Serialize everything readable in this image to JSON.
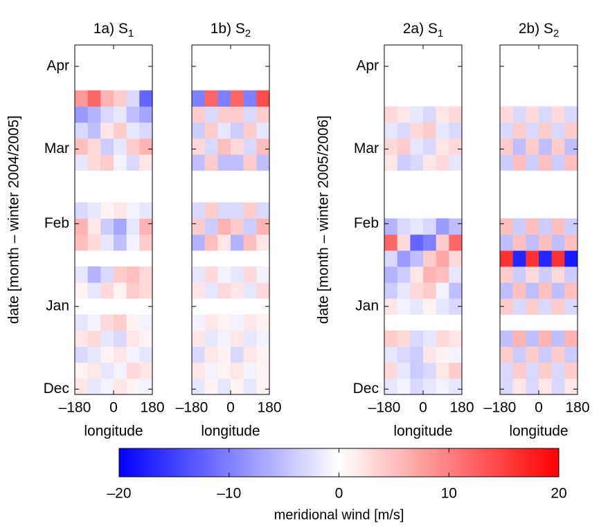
{
  "chart_data": [
    {
      "type": "heatmap",
      "title": "1a) S",
      "title_sub": "1",
      "xlabel": "longitude",
      "ylabel": "date [month – winter 2004/2005]",
      "x": [
        -150,
        -90,
        -30,
        30,
        90,
        150
      ],
      "xlim": [
        -180,
        180
      ],
      "xticks": [
        {
          "value": -180,
          "label": "–180"
        },
        0,
        180
      ],
      "y": [
        1,
        7,
        13,
        19,
        25,
        31,
        37,
        43,
        49,
        55,
        61,
        67,
        73,
        79,
        85,
        91,
        97,
        103,
        109,
        115,
        121,
        127
      ],
      "ylim": [
        -2,
        129
      ],
      "yticks": [
        {
          "value": 0,
          "label": "Dec"
        },
        {
          "value": 31,
          "label": "Jan"
        },
        {
          "value": 62,
          "label": "Feb"
        },
        {
          "value": 90,
          "label": "Mar"
        },
        {
          "value": 121,
          "label": "Apr"
        }
      ],
      "values": [
        [
          2,
          -2,
          -1,
          2,
          1,
          -1
        ],
        [
          1,
          2,
          -2,
          -1,
          3,
          2
        ],
        [
          -3,
          -2,
          1,
          2,
          -1,
          -2
        ],
        [
          2,
          3,
          -2,
          -3,
          2,
          1
        ],
        [
          -2,
          -1,
          3,
          4,
          1,
          -1
        ],
        null,
        [
          1,
          -2,
          3,
          1,
          4,
          3
        ],
        [
          -2,
          -6,
          -3,
          4,
          5,
          3
        ],
        null,
        [
          5,
          3,
          -2,
          -5,
          -1,
          4
        ],
        [
          6,
          2,
          -4,
          -7,
          -2,
          6
        ],
        [
          -3,
          -2,
          1,
          2,
          -1,
          -2
        ],
        null,
        null,
        [
          -2,
          3,
          4,
          -1,
          -3,
          2
        ],
        [
          5,
          3,
          -4,
          -2,
          4,
          6
        ],
        [
          -3,
          -5,
          2,
          4,
          -2,
          -3
        ],
        [
          -8,
          -6,
          -3,
          -2,
          -5,
          -7
        ],
        [
          8,
          12,
          6,
          4,
          -3,
          -12
        ],
        null,
        null,
        null
      ]
    },
    {
      "type": "heatmap",
      "title": "1b) S",
      "title_sub": "2",
      "xlabel": "longitude",
      "x": [
        -150,
        -90,
        -30,
        30,
        90,
        150
      ],
      "xlim": [
        -180,
        180
      ],
      "xticks": [
        {
          "value": -180,
          "label": "–180"
        },
        0,
        180
      ],
      "y": [
        1,
        7,
        13,
        19,
        25,
        31,
        37,
        43,
        49,
        55,
        61,
        67,
        73,
        79,
        85,
        91,
        97,
        103,
        109,
        115,
        121,
        127
      ],
      "ylim": [
        -2,
        129
      ],
      "yticks": [
        0,
        31,
        62,
        90,
        121
      ],
      "values": [
        [
          -2,
          1,
          -2,
          1,
          -2,
          1
        ],
        [
          2,
          -1,
          1,
          2,
          -1,
          1
        ],
        [
          -3,
          2,
          1,
          -3,
          2,
          1
        ],
        [
          2,
          -2,
          -1,
          2,
          -2,
          -1
        ],
        [
          -1,
          2,
          1,
          -1,
          2,
          1
        ],
        null,
        [
          2,
          -2,
          3,
          2,
          -2,
          3
        ],
        [
          -2,
          3,
          -1,
          -2,
          3,
          -1
        ],
        null,
        [
          -6,
          5,
          2,
          -6,
          5,
          2
        ],
        [
          4,
          -4,
          6,
          4,
          -4,
          6
        ],
        [
          -3,
          4,
          -3,
          -3,
          4,
          -3
        ],
        null,
        null,
        [
          -5,
          4,
          -5,
          -5,
          4,
          -5
        ],
        [
          3,
          -3,
          5,
          3,
          -3,
          5
        ],
        [
          -4,
          4,
          -2,
          -4,
          4,
          -2
        ],
        [
          4,
          -3,
          4,
          4,
          -3,
          4
        ],
        [
          -10,
          12,
          -10,
          12,
          -10,
          14
        ],
        null,
        null,
        null
      ]
    },
    {
      "type": "heatmap",
      "title": "2a) S",
      "title_sub": "1",
      "xlabel": "longitude",
      "ylabel": "date [month – winter 2005/2006]",
      "x": [
        -150,
        -90,
        -30,
        30,
        90,
        150
      ],
      "xlim": [
        -180,
        180
      ],
      "xticks": [
        {
          "value": -180,
          "label": "–180"
        },
        0,
        180
      ],
      "y": [
        1,
        7,
        13,
        19,
        25,
        31,
        37,
        43,
        49,
        55,
        61,
        67,
        73,
        79,
        85,
        91,
        97,
        103,
        109,
        115,
        121,
        127
      ],
      "ylim": [
        -2,
        129
      ],
      "yticks": [
        {
          "value": 0,
          "label": "Dec"
        },
        {
          "value": 31,
          "label": "Jan"
        },
        {
          "value": 62,
          "label": "Feb"
        },
        {
          "value": 90,
          "label": "Mar"
        },
        {
          "value": 121,
          "label": "Apr"
        }
      ],
      "values": [
        [
          -2,
          -1,
          -3,
          -2,
          -1,
          -2
        ],
        [
          3,
          -2,
          -4,
          -3,
          2,
          4
        ],
        [
          -2,
          -3,
          -4,
          2,
          1,
          -1
        ],
        [
          4,
          3,
          -3,
          -2,
          3,
          2
        ],
        null,
        [
          2,
          -1,
          -2,
          1,
          -2,
          -3
        ],
        [
          -4,
          -2,
          3,
          4,
          -1,
          -5
        ],
        [
          -6,
          -4,
          2,
          6,
          5,
          -2
        ],
        [
          -3,
          -8,
          -5,
          4,
          7,
          3
        ],
        [
          12,
          3,
          -12,
          -10,
          4,
          12
        ],
        [
          -6,
          -3,
          -2,
          -3,
          -8,
          -5
        ],
        null,
        null,
        null,
        [
          2,
          -4,
          -3,
          2,
          3,
          -2
        ],
        [
          3,
          4,
          -2,
          -3,
          2,
          3
        ],
        [
          -2,
          -3,
          3,
          4,
          -2,
          -3
        ],
        [
          3,
          2,
          -2,
          -3,
          2,
          3
        ],
        null,
        null,
        null,
        null
      ]
    },
    {
      "type": "heatmap",
      "title": "2b) S",
      "title_sub": "2",
      "xlabel": "longitude",
      "x": [
        -150,
        -90,
        -30,
        30,
        90,
        150
      ],
      "xlim": [
        -180,
        180
      ],
      "xticks": [
        {
          "value": -180,
          "label": "–180"
        },
        0,
        180
      ],
      "y": [
        1,
        7,
        13,
        19,
        25,
        31,
        37,
        43,
        49,
        55,
        61,
        67,
        73,
        79,
        85,
        91,
        97,
        103,
        109,
        115,
        121,
        127
      ],
      "ylim": [
        -2,
        129
      ],
      "yticks": [
        0,
        31,
        62,
        90,
        121
      ],
      "values": [
        [
          -3,
          2,
          -3,
          2,
          -3,
          2
        ],
        [
          -3,
          4,
          -3,
          4,
          -3,
          4
        ],
        [
          4,
          -4,
          4,
          -4,
          4,
          -4
        ],
        [
          -5,
          6,
          -5,
          6,
          -5,
          6
        ],
        null,
        [
          4,
          -3,
          4,
          -3,
          4,
          -3
        ],
        [
          -5,
          5,
          -5,
          5,
          -5,
          5
        ],
        [
          4,
          -4,
          3,
          -4,
          3,
          -4
        ],
        [
          16,
          -17,
          16,
          -17,
          16,
          -18
        ],
        [
          -5,
          5,
          -5,
          5,
          -5,
          5
        ],
        [
          5,
          -4,
          5,
          -4,
          5,
          -4
        ],
        null,
        null,
        null,
        [
          -4,
          5,
          -4,
          5,
          -4,
          5
        ],
        [
          4,
          -5,
          4,
          -5,
          4,
          -5
        ],
        [
          -3,
          4,
          -3,
          4,
          -3,
          4
        ],
        [
          3,
          -3,
          3,
          -3,
          3,
          -3
        ],
        null,
        null,
        null,
        null
      ]
    }
  ],
  "colorbar": {
    "label": "meridional wind [m/s]",
    "clim": [
      -20,
      20
    ],
    "ticks": [
      {
        "value": -20,
        "label": "–20"
      },
      {
        "value": -10,
        "label": "–10"
      },
      0,
      10,
      20
    ],
    "colormap": [
      "#0000ff",
      "#ffffff",
      "#ff0000"
    ]
  }
}
